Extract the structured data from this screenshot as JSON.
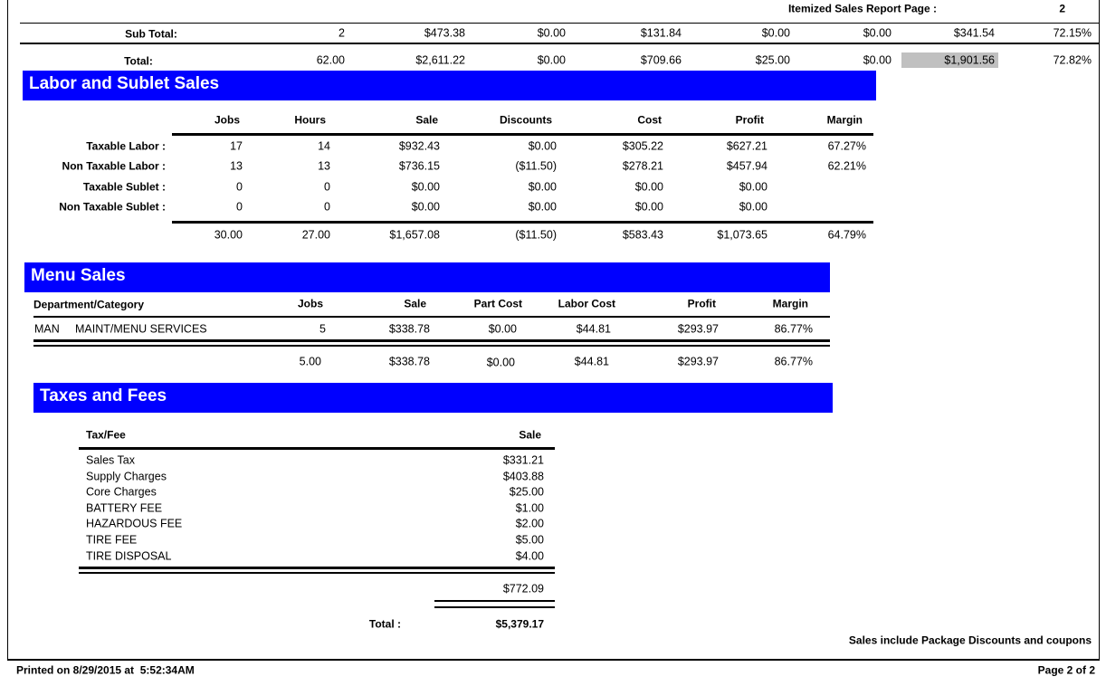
{
  "header": {
    "title": "Itemized Sales Report Page :",
    "page": "2"
  },
  "subtotal": {
    "label": "Sub Total:",
    "values": [
      "2",
      "$473.38",
      "$0.00",
      "$131.84",
      "$0.00",
      "$0.00",
      "$341.54",
      "72.15%"
    ]
  },
  "total": {
    "label": "Total:",
    "values": [
      "62.00",
      "$2,611.22",
      "$0.00",
      "$709.66",
      "$25.00",
      "$0.00",
      "$1,901.56",
      "72.82%"
    ]
  },
  "labor": {
    "title": "Labor and Sublet Sales",
    "columns": [
      "Jobs",
      "Hours",
      "Sale",
      "Discounts",
      "Cost",
      "Profit",
      "Margin"
    ],
    "rows": [
      {
        "label": "Taxable Labor :",
        "values": [
          "17",
          "14",
          "$932.43",
          "$0.00",
          "$305.22",
          "$627.21",
          "67.27%"
        ]
      },
      {
        "label": "Non Taxable Labor :",
        "values": [
          "13",
          "13",
          "$736.15",
          "($11.50)",
          "$278.21",
          "$457.94",
          "62.21%"
        ]
      },
      {
        "label": "Taxable Sublet :",
        "values": [
          "0",
          "0",
          "$0.00",
          "$0.00",
          "$0.00",
          "$0.00"
        ]
      },
      {
        "label": "Non Taxable Sublet :",
        "values": [
          "0",
          "0",
          "$0.00",
          "$0.00",
          "$0.00",
          "$0.00"
        ]
      }
    ],
    "totals": [
      "30.00",
      "27.00",
      "$1,657.08",
      "($11.50)",
      "$583.43",
      "$1,073.65",
      "64.79%"
    ]
  },
  "menu": {
    "title": "Menu Sales",
    "columns": [
      "Department/Category",
      "Jobs",
      "Sale",
      "Part Cost",
      "Labor Cost",
      "Profit",
      "Margin"
    ],
    "rows": [
      [
        "MAN",
        "MAINT/MENU SERVICES",
        "5",
        "$338.78",
        "$0.00",
        "$44.81",
        "$293.97",
        "86.77%"
      ]
    ],
    "totals": [
      "5.00",
      "$338.78",
      "$0.00",
      "$44.81",
      "$293.97",
      "86.77%"
    ]
  },
  "taxes": {
    "title": "Taxes and Fees",
    "columns": [
      "Tax/Fee",
      "Sale"
    ],
    "rows": [
      [
        "Sales Tax",
        "$331.21"
      ],
      [
        "Supply Charges",
        "$403.88"
      ],
      [
        "Core Charges",
        "$25.00"
      ],
      [
        "BATTERY FEE",
        "$1.00"
      ],
      [
        "HAZARDOUS FEE",
        "$2.00"
      ],
      [
        "TIRE FEE",
        "$5.00"
      ],
      [
        "TIRE DISPOSAL",
        "$4.00"
      ]
    ],
    "subtotal": "$772.09",
    "total_label": "Total :",
    "total": "$5,379.17"
  },
  "note": "Sales include Package Discounts and coupons",
  "footer": {
    "printed": "Printed on 8/29/2015 at  5:52:34AM",
    "page": "Page 2 of 2"
  }
}
